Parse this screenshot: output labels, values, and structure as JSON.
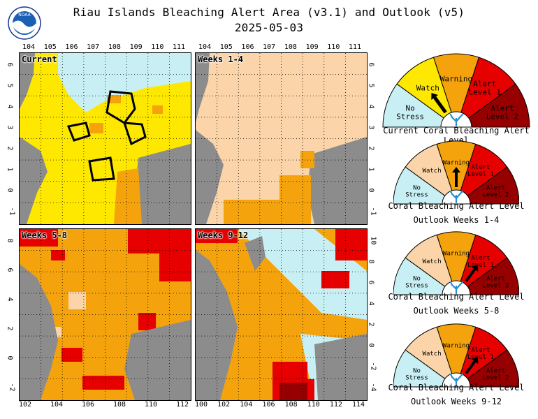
{
  "title": "Riau Islands Bleaching Alert Area (v3.1) and Outlook (v5)",
  "date": "2025-05-03",
  "logo_text": "NOAA",
  "colors": {
    "no_stress": "#c8f0f4",
    "watch": "#ffe800",
    "warning": "#f5a30c",
    "alert1": "#e60000",
    "alert2": "#960000",
    "land": "#8c8c8c",
    "outlook_watch": "#fbd5a9"
  },
  "panels": [
    {
      "label": "Current",
      "top_ticks": [
        "104",
        "105",
        "106",
        "107",
        "108",
        "109",
        "110",
        "111"
      ],
      "left_ticks": [
        "6",
        "5",
        "4",
        "3",
        "2",
        "1",
        "0",
        "-1"
      ]
    },
    {
      "label": "Weeks 1-4",
      "top_ticks": [
        "104",
        "105",
        "106",
        "107",
        "108",
        "109",
        "110",
        "111"
      ],
      "right_ticks": [
        "6",
        "5",
        "4",
        "3",
        "2",
        "1",
        "0",
        "-1"
      ]
    },
    {
      "label": "Weeks 5-8",
      "left_ticks": [
        "8",
        "6",
        "4",
        "2",
        "0",
        "-2"
      ],
      "bottom_ticks": [
        "102",
        "104",
        "106",
        "108",
        "110",
        "112"
      ]
    },
    {
      "label": "Weeks 9-12",
      "right_ticks": [
        "10",
        "8",
        "6",
        "4",
        "2",
        "0",
        "-2",
        "-4"
      ],
      "bottom_ticks": [
        "100",
        "102",
        "104",
        "106",
        "108",
        "110",
        "112",
        "114"
      ]
    }
  ],
  "legend_labels": {
    "no_stress": [
      "No",
      "Stress"
    ],
    "watch": "Watch",
    "warning": "Warning",
    "alert1": [
      "Alert",
      "Level 1"
    ],
    "alert2": [
      "Alert",
      "Level 2"
    ]
  },
  "gauges": [
    {
      "caption_line1": "Current Coral Bleaching Alert Level",
      "caption_line2": "",
      "pointer_level": "Watch"
    },
    {
      "caption_line1": "Coral Bleaching Alert Level",
      "caption_line2": "Outlook Weeks 1-4",
      "pointer_level": "Warning"
    },
    {
      "caption_line1": "Coral Bleaching Alert Level",
      "caption_line2": "Outlook Weeks 5-8",
      "pointer_level": "Alert Level 1"
    },
    {
      "caption_line1": "Coral Bleaching Alert Level",
      "caption_line2": "Outlook Weeks 9-12",
      "pointer_level": "Alert Level 1"
    }
  ]
}
